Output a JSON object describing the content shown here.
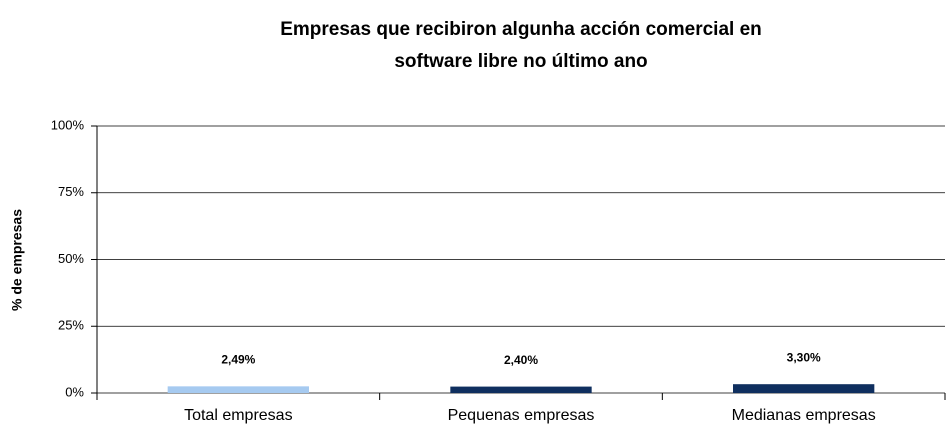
{
  "chart_data": {
    "type": "bar",
    "title": [
      "Empresas que recibiron algunha acción comercial en",
      "software libre no último ano"
    ],
    "y_label": "% de empresas",
    "categories": [
      "Total empresas",
      "Pequenas empresas",
      "Medianas empresas"
    ],
    "values": [
      2.49,
      2.4,
      3.3
    ],
    "value_labels": [
      "2,49%",
      "2,40%",
      "3,30%"
    ],
    "colors": [
      "#a6caf0",
      "#0f2f5f",
      "#0f2f5f"
    ],
    "ylim": [
      0,
      100
    ],
    "yticks": [
      {
        "value": 0,
        "label": "0%"
      },
      {
        "value": 25,
        "label": "25%"
      },
      {
        "value": 50,
        "label": "50%"
      },
      {
        "value": 75,
        "label": "75%"
      },
      {
        "value": 100,
        "label": "100%"
      }
    ],
    "grid": true
  }
}
